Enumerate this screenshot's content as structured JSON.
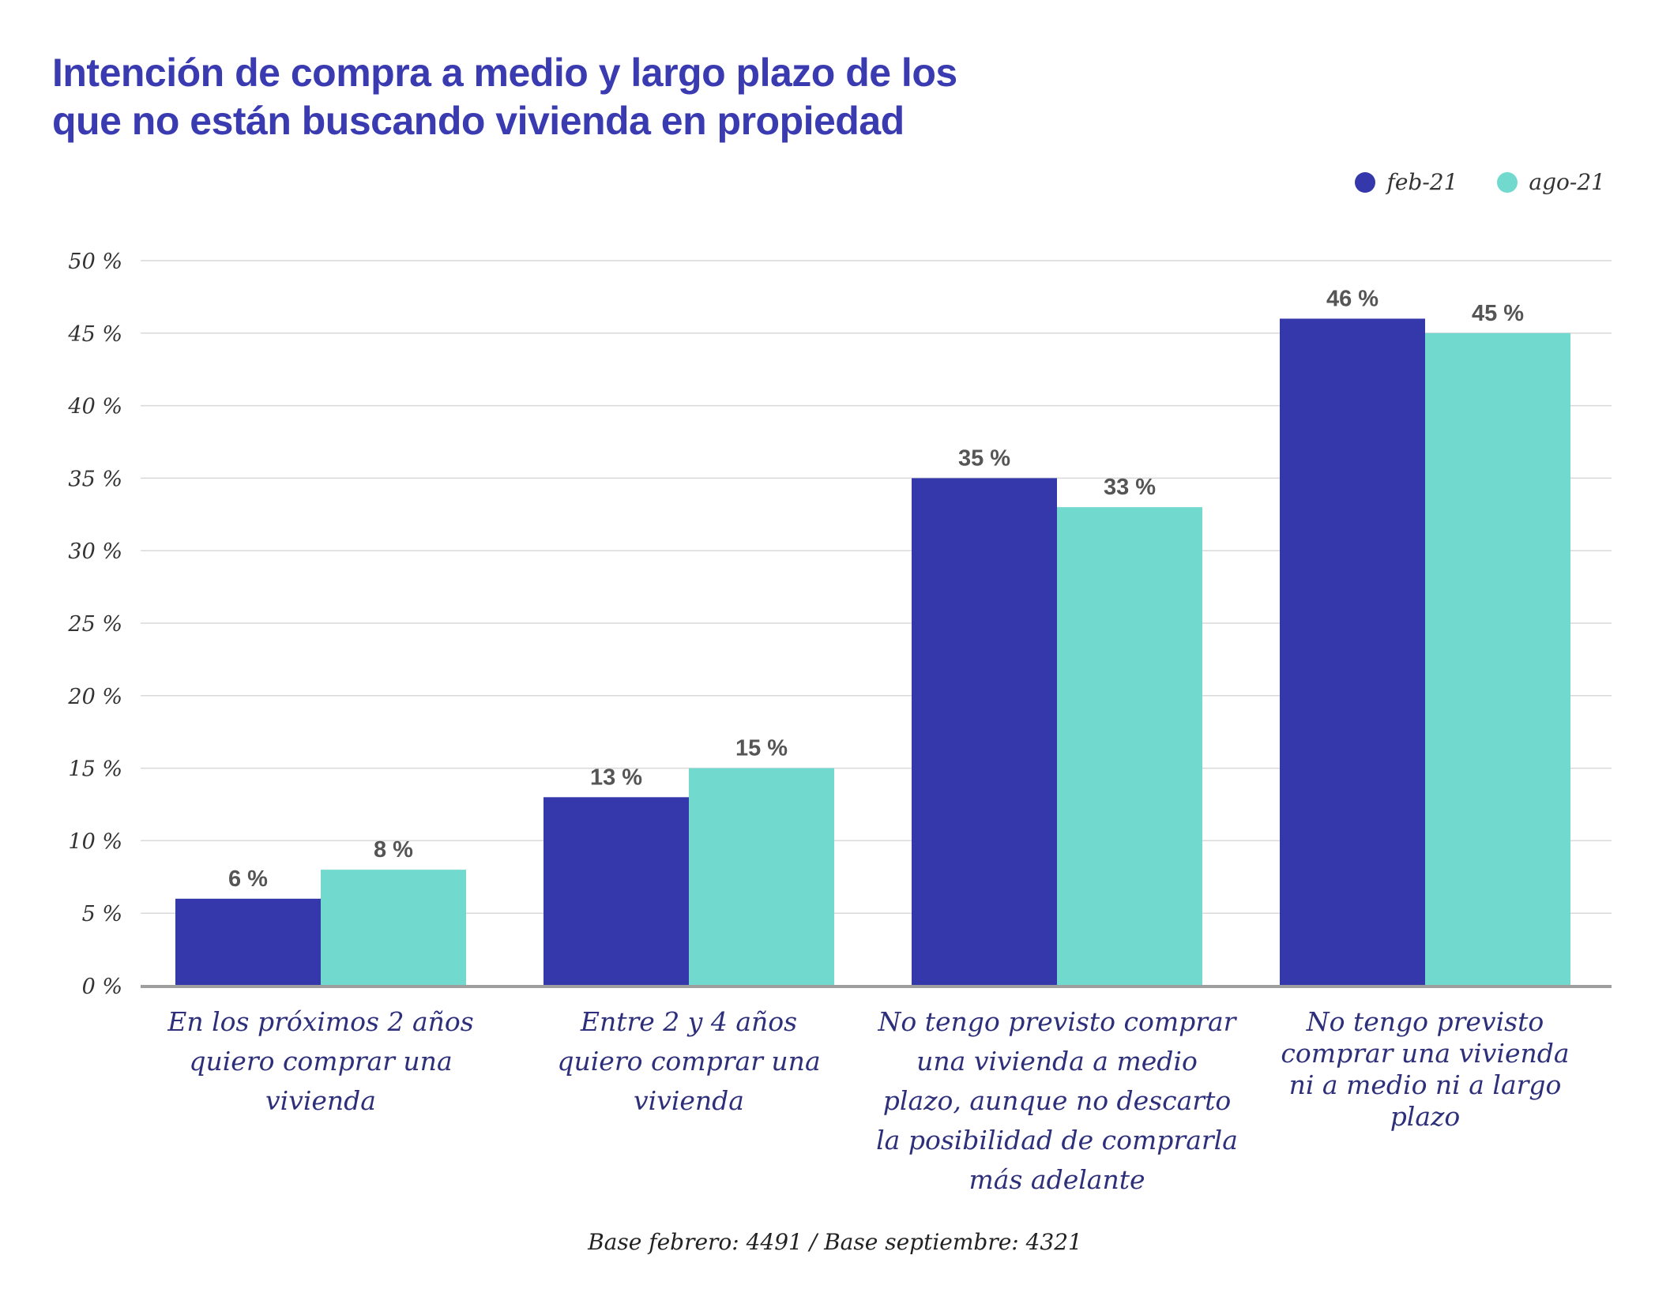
{
  "title_lines": [
    "Intención de compra a medio y largo plazo de los",
    "que no están buscando vivienda en propiedad"
  ],
  "footnote": "Base febrero: 4491 / Base septiembre: 4321",
  "colors": {
    "title": "#3a3bb0",
    "category_label": "#2e2f7a",
    "gridline": "#d9d9d9",
    "axis_line": "#9e9e9e",
    "data_label": "#555555"
  },
  "chart_data": {
    "type": "bar",
    "title": "Intención de compra a medio y largo plazo de los que no están buscando vivienda en propiedad",
    "categories": [
      [
        "En los próximos 2 años",
        "quiero comprar una",
        "vivienda"
      ],
      [
        "Entre 2 y 4 años",
        "quiero comprar una",
        "vivienda"
      ],
      [
        "No tengo previsto comprar",
        "una vivienda  a medio",
        "plazo, aunque no descarto",
        "la posibilidad de comprarla",
        "más adelante"
      ],
      [
        "No tengo previsto",
        "comprar una vivienda",
        "ni a medio ni a largo",
        "plazo"
      ]
    ],
    "series": [
      {
        "name": "feb-21",
        "color": "#3538ab",
        "values": [
          6,
          13,
          35,
          46
        ],
        "labels": [
          "6 %",
          "13 %",
          "35 %",
          "46 %"
        ]
      },
      {
        "name": "ago-21",
        "color": "#72d9cf",
        "values": [
          8,
          15,
          33,
          45
        ],
        "labels": [
          "8 %",
          "15 %",
          "33 %",
          "45 %"
        ]
      }
    ],
    "ylim": [
      0,
      50
    ],
    "yticks": [
      0,
      5,
      10,
      15,
      20,
      25,
      30,
      35,
      40,
      45,
      50
    ],
    "ytick_labels": [
      "0 %",
      "5 %",
      "10 %",
      "15 %",
      "20 %",
      "25 %",
      "30 %",
      "35 %",
      "40 %",
      "45 %",
      "50 %"
    ],
    "grid": true,
    "legend_position": "top-right"
  }
}
